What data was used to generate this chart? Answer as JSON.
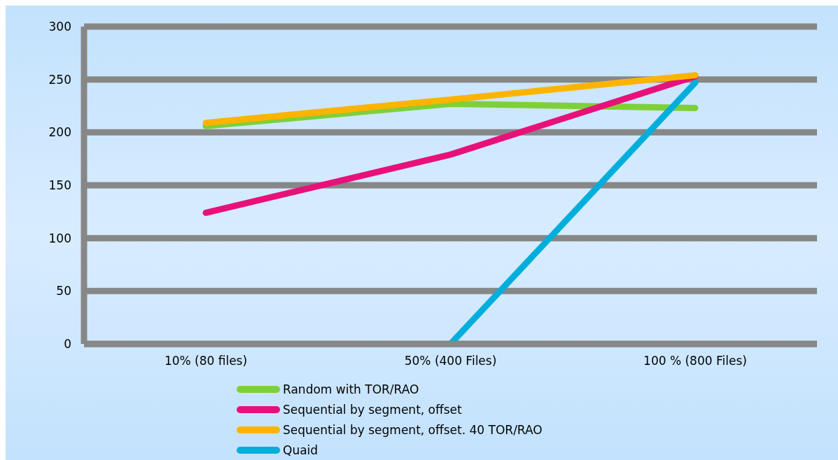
{
  "chart_data": {
    "type": "line",
    "categories": [
      "10% (80 files)",
      "50% (400 Files)",
      "100 % (800 Files)"
    ],
    "series": [
      {
        "name": "Random with TOR/RAO",
        "color": "#7ed03a",
        "values": [
          206,
          227,
          223
        ]
      },
      {
        "name": "Sequential by segment, offset",
        "color": "#e8117a",
        "values": [
          124,
          179,
          253
        ]
      },
      {
        "name": "Sequential by segment, offset. 40 TOR/RAO",
        "color": "#fdb400",
        "values": [
          209,
          231,
          254
        ]
      },
      {
        "name": "Quaid",
        "color": "#00aedc",
        "values": [
          null,
          0,
          247
        ]
      }
    ],
    "ylim": [
      0,
      300
    ],
    "yticks": [
      0,
      50,
      100,
      150,
      200,
      250,
      300
    ],
    "grid": "y",
    "legend": "bottom",
    "marker": "none",
    "line_style": "solid"
  }
}
